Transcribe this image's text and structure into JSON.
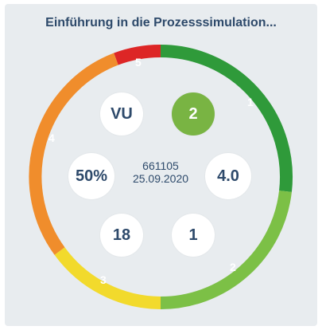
{
  "title": "Einführung in die Prozesssimulation...",
  "center": {
    "code": "661105",
    "date": "25.09.2020"
  },
  "bubbles": {
    "top_left": "VU",
    "top_right": "2",
    "mid_left": "50%",
    "mid_right": "4.0",
    "bottom_left": "18",
    "bottom_right": "1"
  },
  "segments": [
    {
      "label": "1",
      "color": "#2f9a3a"
    },
    {
      "label": "2",
      "color": "#7cc046"
    },
    {
      "label": "3",
      "color": "#f2da2c"
    },
    {
      "label": "4",
      "color": "#f08d2c"
    },
    {
      "label": "5",
      "color": "#dd2626"
    }
  ]
}
